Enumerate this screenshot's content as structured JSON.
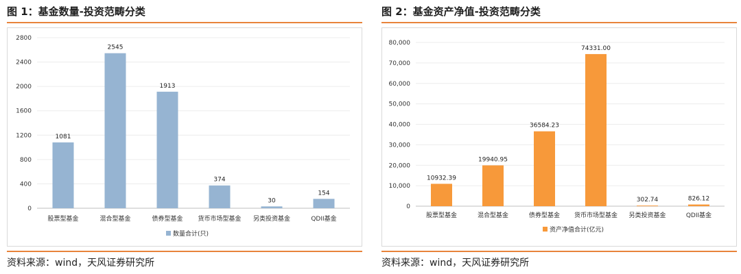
{
  "panels": [
    {
      "title": "图 1：基金数量-投资范畴分类",
      "source": "资料来源：wind，天风证券研究所"
    },
    {
      "title": "图 2：基金资产净值-投资范畴分类",
      "source": "资料来源：wind，天风证券研究所"
    }
  ],
  "chart_data": [
    {
      "type": "bar",
      "title": "",
      "categories": [
        "股票型基金",
        "混合型基金",
        "债券型基金",
        "货币市场型基金",
        "另类投资基金",
        "QDII基金"
      ],
      "series": [
        {
          "name": "数量合计(只)",
          "values": [
            1081,
            2545,
            1913,
            374,
            30,
            154
          ],
          "color": "#96b4d2"
        }
      ],
      "value_labels": [
        "1081",
        "2545",
        "1913",
        "374",
        "30",
        "154"
      ],
      "ylim": [
        0,
        2800
      ],
      "yticks": [
        0,
        400,
        800,
        1200,
        1600,
        2000,
        2400,
        2800
      ],
      "ytick_labels": [
        "0",
        "400",
        "800",
        "1200",
        "1600",
        "2000",
        "2400",
        "2800"
      ],
      "grid": true,
      "legend": "bottom"
    },
    {
      "type": "bar",
      "title": "",
      "categories": [
        "股票型基金",
        "混合型基金",
        "债券型基金",
        "货币市场型基金",
        "另类投资基金",
        "QDII基金"
      ],
      "series": [
        {
          "name": "资产净值合计(亿元)",
          "values": [
            10932.39,
            19940.95,
            36584.23,
            74331.0,
            302.74,
            826.12
          ],
          "color": "#f7993a"
        }
      ],
      "value_labels": [
        "10932.39",
        "19940.95",
        "36584.23",
        "74331.00",
        "302.74",
        "826.12"
      ],
      "ylim": [
        0,
        80000
      ],
      "yticks": [
        0,
        10000,
        20000,
        30000,
        40000,
        50000,
        60000,
        70000,
        80000
      ],
      "ytick_labels": [
        "0",
        "10,000",
        "20,000",
        "30,000",
        "40,000",
        "50,000",
        "60,000",
        "70,000",
        "80,000"
      ],
      "grid": true,
      "legend": "bottom"
    }
  ]
}
